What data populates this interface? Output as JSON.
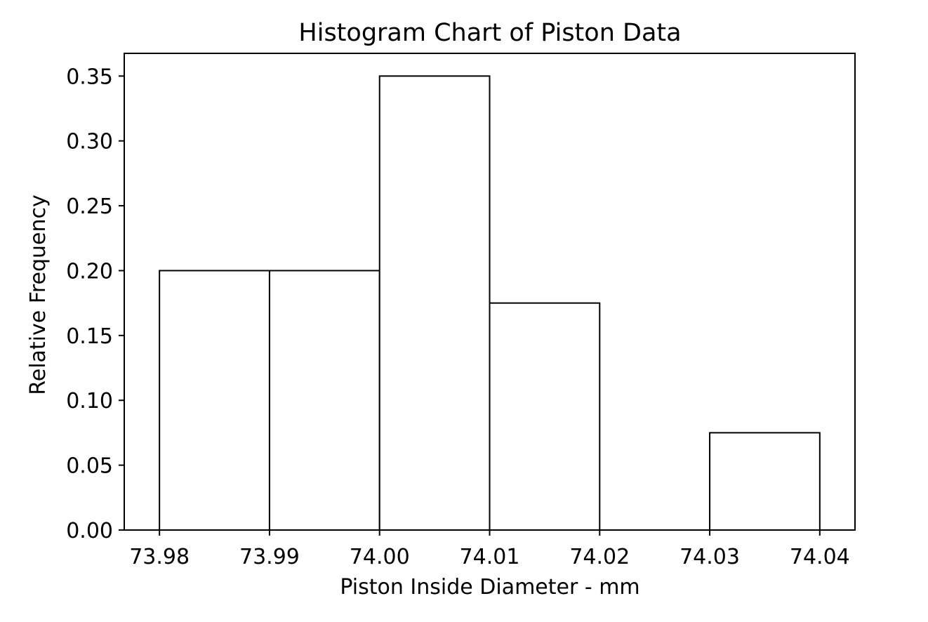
{
  "chart_data": {
    "type": "bar",
    "title": "Histogram Chart of Piston Data",
    "xlabel": "Piston Inside Diameter - mm",
    "ylabel": "Relative Frequency",
    "bins": [
      {
        "start": 73.98,
        "end": 73.99,
        "value": 0.2
      },
      {
        "start": 73.99,
        "end": 74.0,
        "value": 0.2
      },
      {
        "start": 74.0,
        "end": 74.01,
        "value": 0.35
      },
      {
        "start": 74.01,
        "end": 74.02,
        "value": 0.175
      },
      {
        "start": 74.02,
        "end": 74.03,
        "value": 0.0
      },
      {
        "start": 74.03,
        "end": 74.04,
        "value": 0.075
      }
    ],
    "xlim": [
      73.9768,
      74.0432
    ],
    "ylim": [
      0,
      0.3675
    ],
    "x_ticks": [
      73.98,
      73.99,
      74.0,
      74.01,
      74.02,
      74.03,
      74.04
    ],
    "x_tick_labels": [
      "73.98",
      "73.99",
      "74.00",
      "74.01",
      "74.02",
      "74.03",
      "74.04"
    ],
    "y_ticks": [
      0.0,
      0.05,
      0.1,
      0.15,
      0.2,
      0.25,
      0.3,
      0.35
    ],
    "y_tick_labels": [
      "0.00",
      "0.05",
      "0.10",
      "0.15",
      "0.20",
      "0.25",
      "0.30",
      "0.35"
    ],
    "grid": false,
    "bar_fill": "#ffffff",
    "bar_edge": "#000000"
  }
}
